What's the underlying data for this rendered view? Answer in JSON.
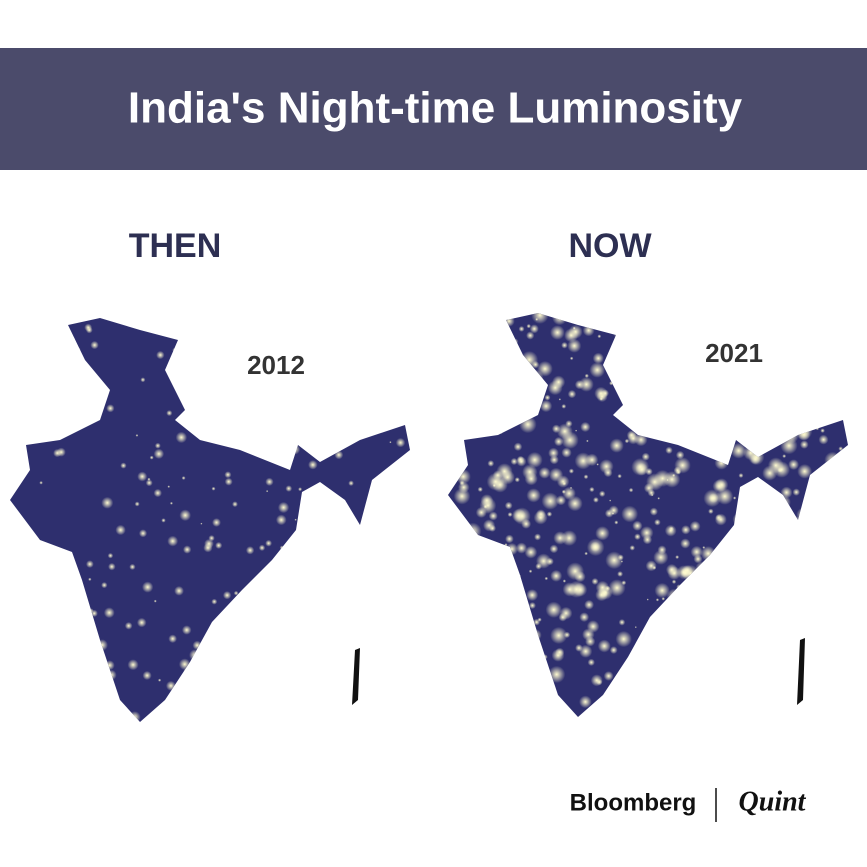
{
  "header": {
    "title": "India's Night-time Luminosity"
  },
  "maps": [
    {
      "label": "THEN",
      "year": "2012"
    },
    {
      "label": "NOW",
      "year": "2021"
    }
  ],
  "footer": {
    "brand": "Bloomberg",
    "brand2": "Quint"
  }
}
